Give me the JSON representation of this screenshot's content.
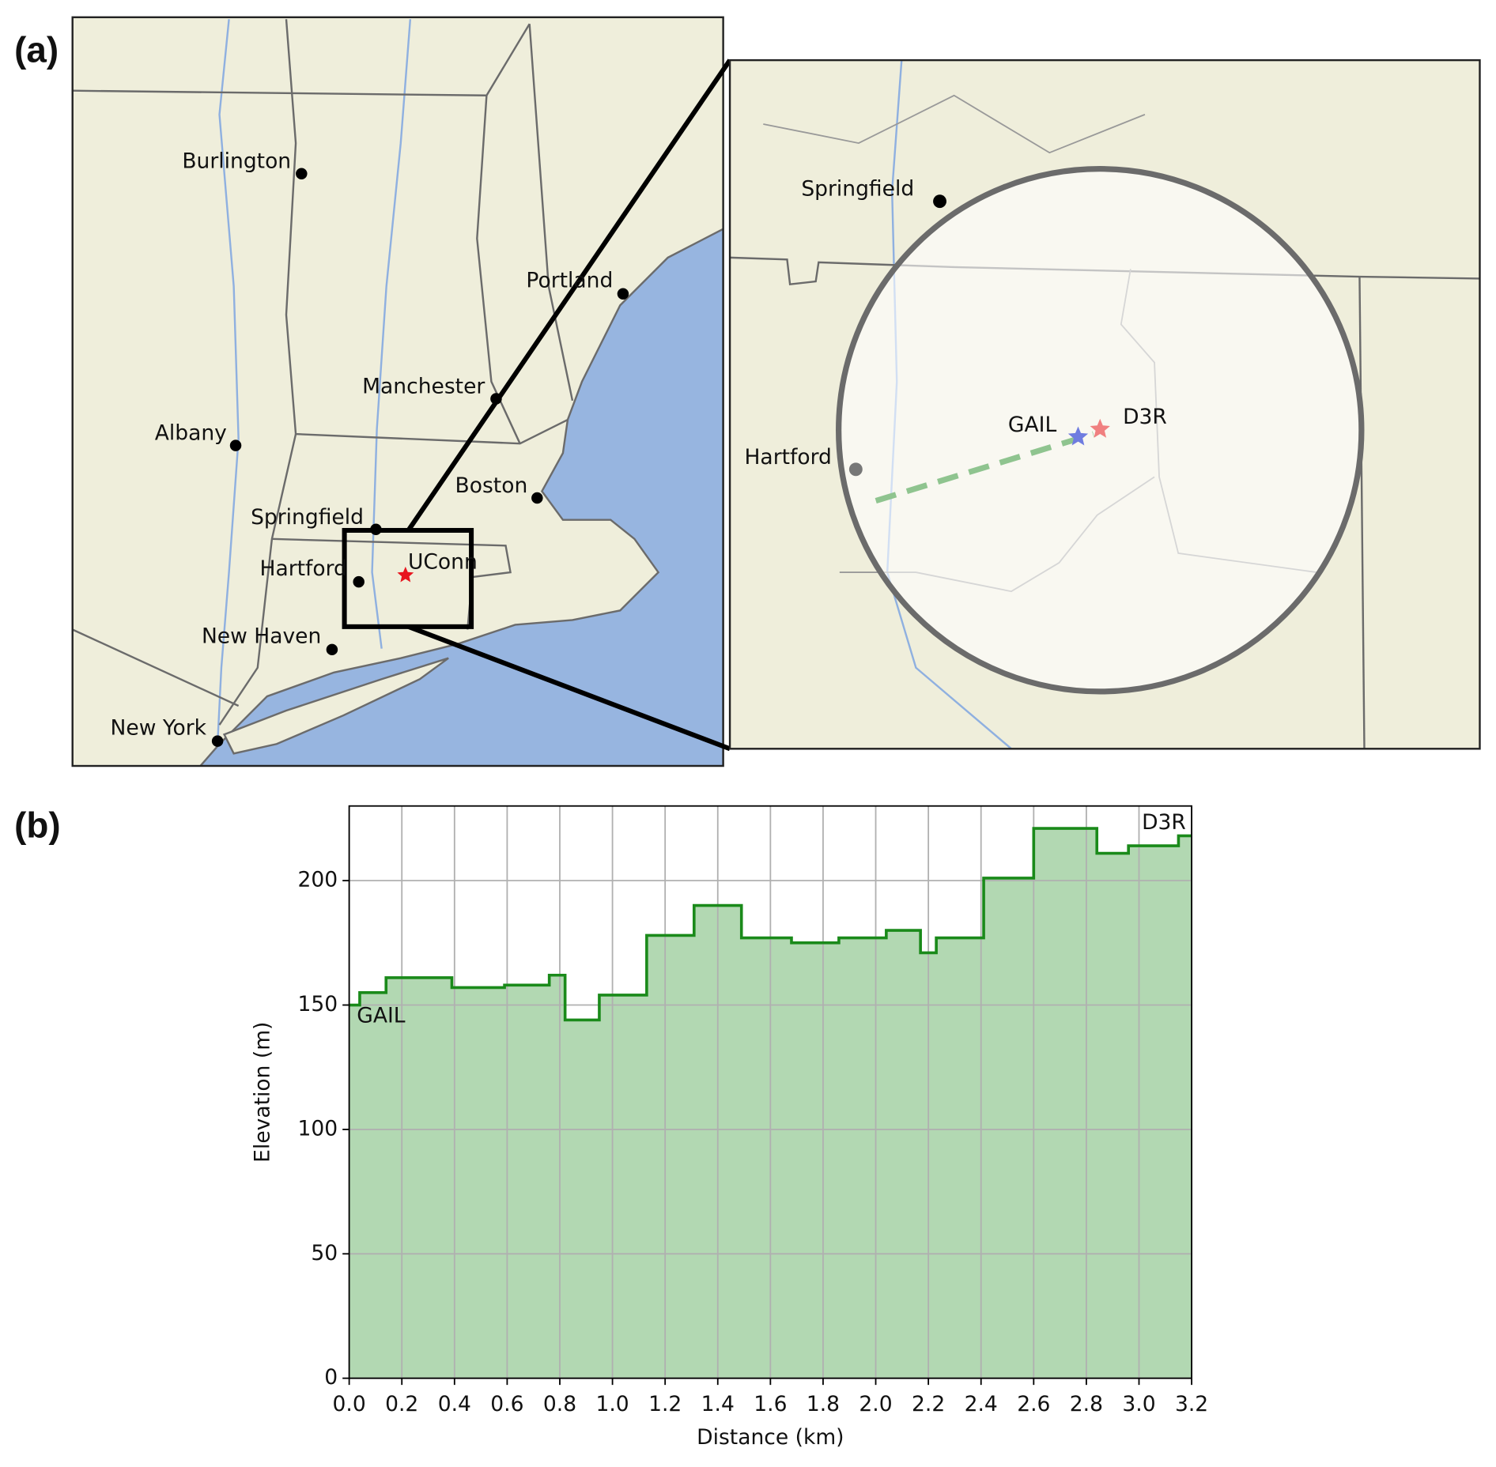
{
  "panel_labels": [
    "(a)",
    "(b)"
  ],
  "map": {
    "cities": [
      "Burlington",
      "Portland",
      "Manchester",
      "Albany",
      "Boston",
      "Springfield",
      "Hartford",
      "UConn",
      "New Haven",
      "New York"
    ],
    "inset_cities": [
      "Springfield",
      "Hartford"
    ],
    "inset_sites": [
      "GAIL",
      "D3R"
    ]
  },
  "chart_data": {
    "type": "step",
    "x_label": "Distance (km)",
    "y_label": "Elevation (m)",
    "annotations": [
      "GAIL",
      "D3R"
    ],
    "x": [
      0,
      0.04,
      0.14,
      0.39,
      0.59,
      0.76,
      0.82,
      0.95,
      1.13,
      1.31,
      1.49,
      1.68,
      1.86,
      2.04,
      2.17,
      2.23,
      2.41,
      2.6,
      2.84,
      2.96,
      3.15
    ],
    "values": [
      150,
      155,
      161,
      157,
      158,
      162,
      144,
      154,
      178,
      190,
      177,
      175,
      177,
      180,
      171,
      177,
      201,
      221,
      211,
      214,
      218
    ],
    "color": "#1a8a1a",
    "fill": "#b2d8b2",
    "xlim": [
      0,
      3.2
    ],
    "ylim": [
      0,
      230
    ],
    "xticks": [
      {
        "value": 0,
        "label": "0.0"
      },
      {
        "value": 0.2,
        "label": "0.2"
      },
      {
        "value": 0.4,
        "label": "0.4"
      },
      {
        "value": 0.6,
        "label": "0.6"
      },
      {
        "value": 0.8,
        "label": "0.8"
      },
      {
        "value": 1,
        "label": "1.0"
      },
      {
        "value": 1.2,
        "label": "1.2"
      },
      {
        "value": 1.4,
        "label": "1.4"
      },
      {
        "value": 1.6,
        "label": "1.6"
      },
      {
        "value": 1.8,
        "label": "1.8"
      },
      {
        "value": 2,
        "label": "2.0"
      },
      {
        "value": 2.2,
        "label": "2.2"
      },
      {
        "value": 2.4,
        "label": "2.4"
      },
      {
        "value": 2.6,
        "label": "2.6"
      },
      {
        "value": 2.8,
        "label": "2.8"
      },
      {
        "value": 3,
        "label": "3.0"
      },
      {
        "value": 3.2,
        "label": "3.2"
      }
    ],
    "yticks": [
      0,
      50,
      100,
      150,
      200
    ],
    "grid": true
  }
}
